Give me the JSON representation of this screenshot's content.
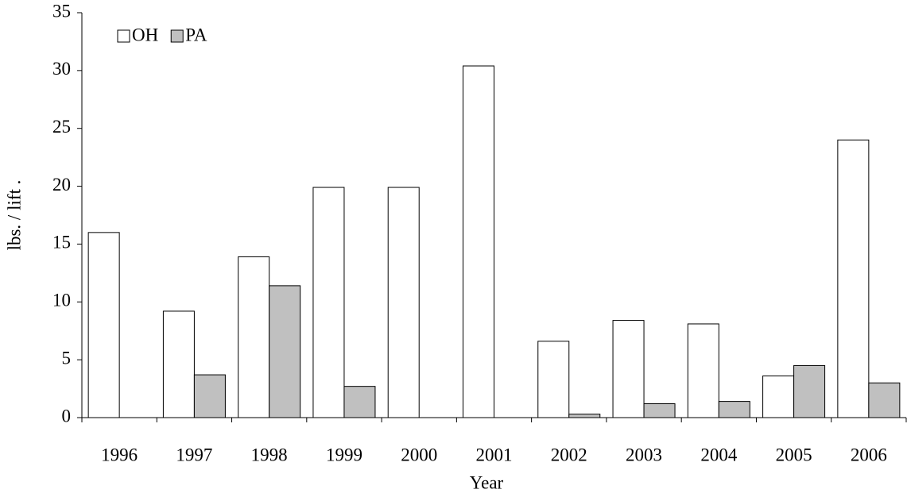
{
  "chart_data": {
    "type": "bar",
    "x_label": "Year",
    "y_label": "lbs. / lift .",
    "categories": [
      "1996",
      "1997",
      "1998",
      "1999",
      "2000",
      "2001",
      "2002",
      "2003",
      "2004",
      "2005",
      "2006"
    ],
    "series": [
      {
        "name": "OH",
        "color": "#ffffff",
        "values": [
          16.0,
          9.2,
          13.9,
          19.9,
          19.9,
          30.4,
          6.6,
          8.4,
          8.1,
          3.6,
          24.0
        ]
      },
      {
        "name": "PA",
        "color": "#c0c0c0",
        "values": [
          null,
          3.7,
          11.4,
          2.7,
          null,
          null,
          0.3,
          1.2,
          1.4,
          4.5,
          3.0
        ]
      }
    ],
    "ylim": [
      0,
      35
    ],
    "yticks": [
      0,
      5,
      10,
      15,
      20,
      25,
      30,
      35
    ],
    "legend": "top-left"
  }
}
